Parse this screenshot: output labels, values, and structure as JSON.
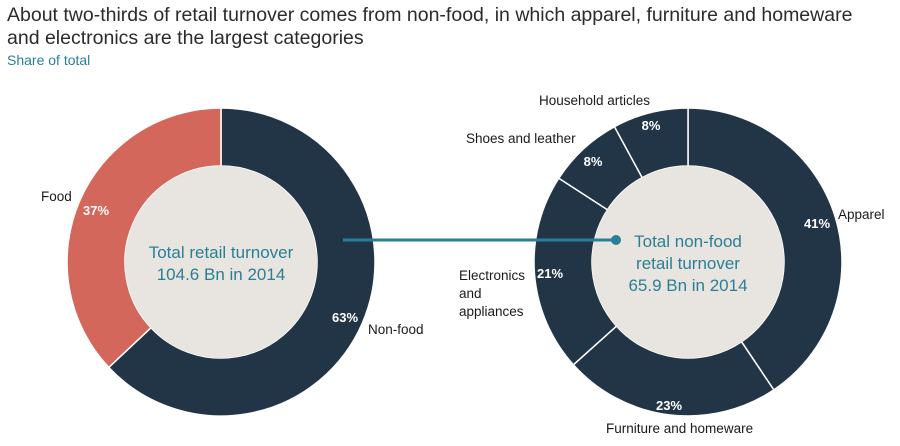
{
  "title": "About two-thirds of retail turnover comes from non-food, in which apparel, furniture and homeware and electronics are the largest categories",
  "subtitle": "Share of total",
  "colors": {
    "food": "#d4675c",
    "dark": "#213547",
    "center_fill": "#e8e4df",
    "accent": "#2a7f96",
    "divider": "#ffffff"
  },
  "chart_data": [
    {
      "type": "pie",
      "donut": true,
      "center_text": [
        "Total retail turnover",
        "104.6 Bn in 2014"
      ],
      "slices": [
        {
          "label": "Non-food",
          "value": 63,
          "value_label": "63%",
          "color_key": "dark"
        },
        {
          "label": "Food",
          "value": 37,
          "value_label": "37%",
          "color_key": "food"
        }
      ]
    },
    {
      "type": "pie",
      "donut": true,
      "center_text": [
        "Total non-food",
        "retail turnover",
        "65.9 Bn in 2014"
      ],
      "slices": [
        {
          "label": "Apparel",
          "value": 41,
          "value_label": "41%",
          "color_key": "dark"
        },
        {
          "label": "Furniture and homeware",
          "value": 23,
          "value_label": "23%",
          "color_key": "dark"
        },
        {
          "label": "Electronics and appliances",
          "value": 21,
          "value_label": "21%",
          "color_key": "dark"
        },
        {
          "label": "Shoes and leather",
          "value": 8,
          "value_label": "8%",
          "color_key": "dark"
        },
        {
          "label": "Household articles",
          "value": 8,
          "value_label": "8%",
          "color_key": "dark"
        }
      ]
    }
  ]
}
